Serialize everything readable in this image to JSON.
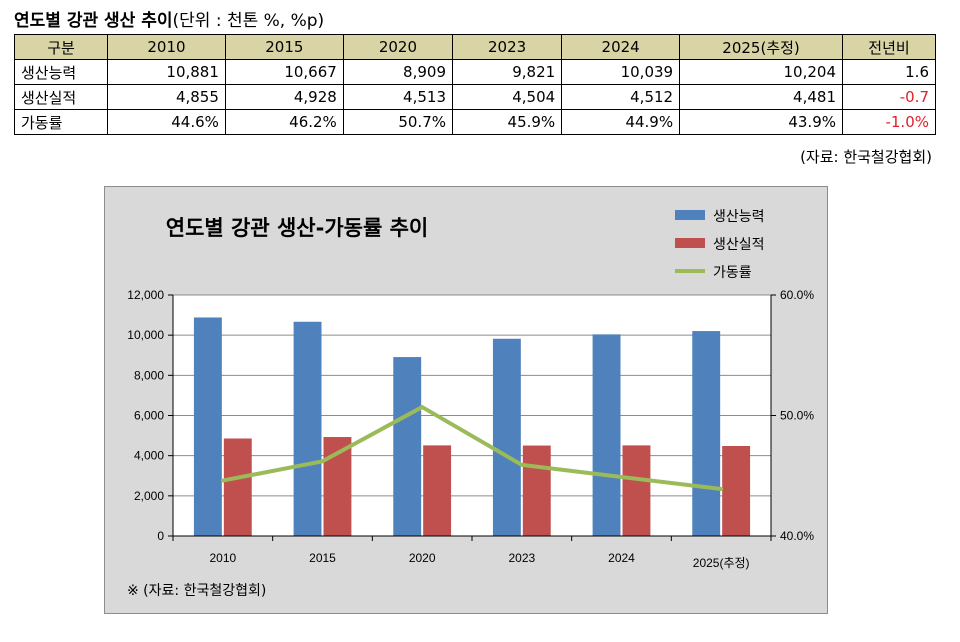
{
  "header": {
    "title_bold": "연도별 강관 생산 추이",
    "title_unit": "(단위 : 천톤 %, %p)"
  },
  "table": {
    "columns": [
      "구분",
      "2010",
      "2015",
      "2020",
      "2023",
      "2024",
      "2025(추정)",
      "전년비"
    ],
    "rows": [
      {
        "label": "생산능력",
        "cells": [
          "10,881",
          "10,667",
          "8,909",
          "9,821",
          "10,039",
          "10,204"
        ],
        "change": "1.6",
        "negative": false
      },
      {
        "label": "생산실적",
        "cells": [
          "4,855",
          "4,928",
          "4,513",
          "4,504",
          "4,512",
          "4,481"
        ],
        "change": "-0.7",
        "negative": true
      },
      {
        "label": "가동률",
        "cells": [
          "44.6%",
          "46.2%",
          "50.7%",
          "45.9%",
          "44.9%",
          "43.9%"
        ],
        "change": "-1.0%",
        "negative": true
      }
    ],
    "source": "(자료: 한국철강협회)"
  },
  "chart_data": {
    "type": "bar",
    "title": "연도별 강관 생산-가동률 추이",
    "categories": [
      "2010",
      "2015",
      "2020",
      "2023",
      "2024",
      "2025(추정)"
    ],
    "series": [
      {
        "name": "생산능력",
        "type": "bar",
        "color": "#4f81bd",
        "values": [
          10881,
          10667,
          8909,
          9821,
          10039,
          10204
        ]
      },
      {
        "name": "생산실적",
        "type": "bar",
        "color": "#c0504d",
        "values": [
          4855,
          4928,
          4513,
          4504,
          4512,
          4481
        ]
      },
      {
        "name": "가동률",
        "type": "line",
        "axis": "right",
        "color": "#9bbb59",
        "values": [
          44.6,
          46.2,
          50.7,
          45.9,
          44.9,
          43.9
        ]
      }
    ],
    "ylim": [
      0,
      12000
    ],
    "y_ticks": [
      0,
      2000,
      4000,
      6000,
      8000,
      10000,
      12000
    ],
    "y_tick_labels": [
      "0",
      "2,000",
      "4,000",
      "6,000",
      "8,000",
      "10,000",
      "12,000"
    ],
    "y2lim": [
      40,
      60
    ],
    "y2_ticks": [
      40,
      50,
      60
    ],
    "y2_tick_labels": [
      "40.0%",
      "50.0%",
      "60.0%"
    ],
    "legend_position": "top-right",
    "note": "※ (자료: 한국철강협회)"
  }
}
